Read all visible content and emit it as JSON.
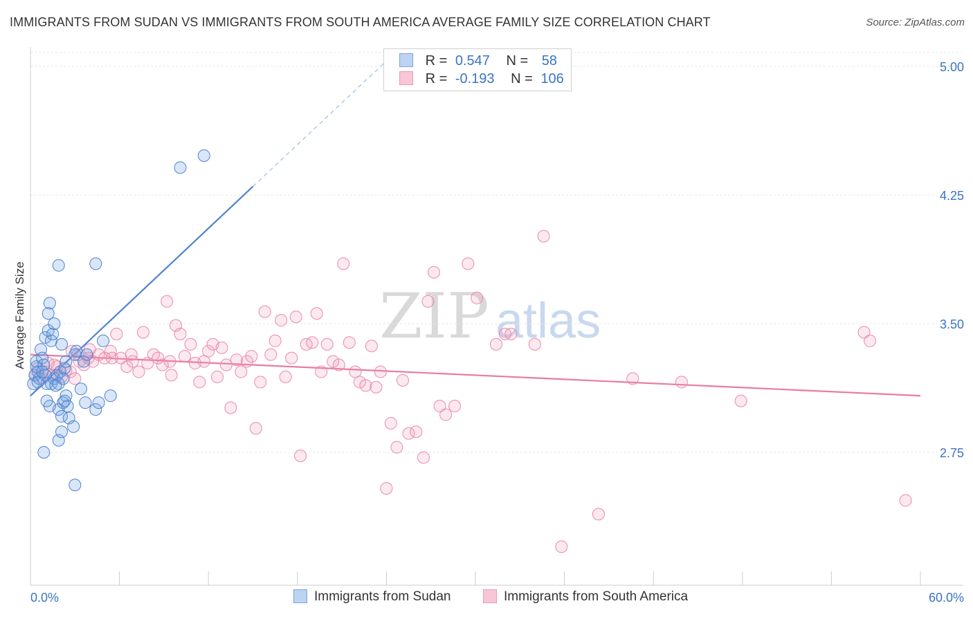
{
  "title": "IMMIGRANTS FROM SUDAN VS IMMIGRANTS FROM SOUTH AMERICA AVERAGE FAMILY SIZE CORRELATION CHART",
  "source": "Source: ZipAtlas.com",
  "watermark": {
    "part1": "ZIP",
    "part2": "atlas"
  },
  "colors": {
    "series_a": "#4e82cf",
    "series_b": "#e87ba0",
    "tick_text": "#3a74c4"
  },
  "legend": {
    "rows": [
      {
        "r_label": "R =",
        "r_value": "0.547",
        "n_label": "N =",
        "n_value": "58"
      },
      {
        "r_label": "R =",
        "r_value": "-0.193",
        "n_label": "N =",
        "n_value": "106"
      }
    ]
  },
  "chart_data": {
    "type": "scatter",
    "ylabel": "Average Family Size",
    "xlabel": "",
    "xlim": [
      0,
      60
    ],
    "ylim": [
      2.0,
      5.1
    ],
    "x_tick_labels": {
      "min": "0.0%",
      "max": "60.0%"
    },
    "y_ticks": [
      {
        "value": 2.75,
        "label": "2.75"
      },
      {
        "value": 3.5,
        "label": "3.50"
      },
      {
        "value": 4.25,
        "label": "4.25"
      },
      {
        "value": 5.0,
        "label": "5.00"
      }
    ],
    "series": [
      {
        "name": "Immigrants from Sudan",
        "r": 0.547,
        "n": 58,
        "trend": {
          "x0": 0.0,
          "y0": 3.08,
          "x1": 15.0,
          "y1": 4.3,
          "x_dash_end": 24.0
        },
        "points": [
          [
            0.2,
            3.15
          ],
          [
            0.3,
            3.2
          ],
          [
            0.4,
            3.25
          ],
          [
            0.5,
            3.22
          ],
          [
            0.6,
            3.18
          ],
          [
            0.4,
            3.28
          ],
          [
            0.7,
            3.35
          ],
          [
            0.8,
            3.3
          ],
          [
            0.9,
            3.26
          ],
          [
            1.0,
            3.2
          ],
          [
            1.1,
            3.15
          ],
          [
            1.0,
            3.42
          ],
          [
            1.2,
            3.46
          ],
          [
            1.3,
            3.62
          ],
          [
            1.2,
            3.56
          ],
          [
            1.4,
            3.4
          ],
          [
            1.5,
            3.44
          ],
          [
            1.6,
            3.5
          ],
          [
            1.4,
            3.15
          ],
          [
            1.6,
            3.18
          ],
          [
            1.8,
            3.2
          ],
          [
            1.9,
            3.15
          ],
          [
            2.1,
            3.38
          ],
          [
            2.0,
            3.22
          ],
          [
            2.3,
            3.24
          ],
          [
            2.4,
            3.28
          ],
          [
            1.9,
            2.82
          ],
          [
            2.1,
            2.87
          ],
          [
            1.9,
            3.0
          ],
          [
            2.2,
            3.04
          ],
          [
            2.4,
            3.08
          ],
          [
            2.1,
            2.96
          ],
          [
            2.5,
            3.02
          ],
          [
            2.3,
            3.05
          ],
          [
            1.3,
            3.02
          ],
          [
            1.1,
            3.05
          ],
          [
            0.9,
            2.75
          ],
          [
            2.6,
            2.95
          ],
          [
            2.9,
            2.9
          ],
          [
            3.0,
            3.32
          ],
          [
            3.1,
            3.34
          ],
          [
            3.4,
            3.12
          ],
          [
            3.6,
            3.28
          ],
          [
            3.8,
            3.32
          ],
          [
            3.7,
            3.04
          ],
          [
            4.4,
            3.0
          ],
          [
            4.6,
            3.04
          ],
          [
            4.9,
            3.4
          ],
          [
            5.4,
            3.08
          ],
          [
            4.4,
            3.85
          ],
          [
            1.9,
            3.84
          ],
          [
            3.0,
            2.56
          ],
          [
            10.1,
            4.41
          ],
          [
            11.7,
            4.48
          ],
          [
            0.5,
            3.16
          ],
          [
            0.8,
            3.22
          ],
          [
            1.7,
            3.14
          ],
          [
            2.2,
            3.18
          ]
        ]
      },
      {
        "name": "Immigrants from South America",
        "r": -0.193,
        "n": 106,
        "trend": {
          "x0": 0.0,
          "y0": 3.32,
          "x1": 60.0,
          "y1": 3.08
        },
        "points": [
          [
            0.3,
            3.2
          ],
          [
            0.5,
            3.24
          ],
          [
            0.8,
            3.18
          ],
          [
            1.0,
            3.22
          ],
          [
            1.2,
            3.27
          ],
          [
            1.5,
            3.2
          ],
          [
            1.8,
            3.25
          ],
          [
            2.1,
            3.19
          ],
          [
            2.4,
            3.23
          ],
          [
            2.7,
            3.22
          ],
          [
            3.0,
            3.18
          ],
          [
            3.3,
            3.28
          ],
          [
            3.6,
            3.26
          ],
          [
            3.9,
            3.3
          ],
          [
            4.2,
            3.28
          ],
          [
            4.6,
            3.32
          ],
          [
            5.0,
            3.3
          ],
          [
            5.4,
            3.34
          ],
          [
            5.8,
            3.44
          ],
          [
            6.1,
            3.3
          ],
          [
            6.5,
            3.25
          ],
          [
            6.9,
            3.28
          ],
          [
            7.3,
            3.22
          ],
          [
            7.6,
            3.45
          ],
          [
            7.9,
            3.27
          ],
          [
            8.3,
            3.32
          ],
          [
            8.6,
            3.3
          ],
          [
            8.9,
            3.26
          ],
          [
            9.2,
            3.63
          ],
          [
            9.5,
            3.2
          ],
          [
            9.8,
            3.49
          ],
          [
            10.1,
            3.44
          ],
          [
            10.4,
            3.31
          ],
          [
            10.8,
            3.38
          ],
          [
            11.1,
            3.27
          ],
          [
            11.4,
            3.16
          ],
          [
            11.7,
            3.28
          ],
          [
            12.0,
            3.34
          ],
          [
            12.3,
            3.38
          ],
          [
            12.6,
            3.19
          ],
          [
            12.9,
            3.36
          ],
          [
            13.2,
            3.26
          ],
          [
            13.5,
            3.01
          ],
          [
            13.9,
            3.29
          ],
          [
            14.2,
            3.22
          ],
          [
            14.6,
            3.28
          ],
          [
            14.9,
            3.31
          ],
          [
            15.2,
            2.89
          ],
          [
            15.5,
            3.16
          ],
          [
            15.8,
            3.57
          ],
          [
            16.2,
            3.32
          ],
          [
            16.5,
            3.4
          ],
          [
            16.9,
            3.52
          ],
          [
            17.2,
            3.19
          ],
          [
            17.6,
            3.3
          ],
          [
            17.9,
            3.54
          ],
          [
            18.2,
            2.73
          ],
          [
            18.6,
            3.38
          ],
          [
            19.0,
            3.39
          ],
          [
            19.3,
            3.56
          ],
          [
            19.6,
            3.22
          ],
          [
            20.0,
            3.38
          ],
          [
            20.4,
            3.28
          ],
          [
            20.8,
            3.26
          ],
          [
            21.1,
            3.85
          ],
          [
            21.5,
            3.39
          ],
          [
            21.9,
            3.22
          ],
          [
            22.2,
            3.16
          ],
          [
            22.6,
            3.14
          ],
          [
            23.0,
            3.37
          ],
          [
            23.3,
            3.13
          ],
          [
            23.6,
            3.22
          ],
          [
            24.0,
            2.54
          ],
          [
            24.3,
            2.92
          ],
          [
            24.7,
            2.78
          ],
          [
            25.1,
            3.17
          ],
          [
            25.5,
            2.86
          ],
          [
            26.0,
            2.87
          ],
          [
            26.5,
            2.72
          ],
          [
            26.8,
            3.63
          ],
          [
            27.2,
            3.8
          ],
          [
            27.6,
            3.02
          ],
          [
            28.0,
            2.97
          ],
          [
            28.6,
            3.02
          ],
          [
            29.5,
            3.85
          ],
          [
            30.1,
            3.65
          ],
          [
            31.4,
            3.38
          ],
          [
            32.0,
            3.44
          ],
          [
            32.4,
            3.44
          ],
          [
            34.0,
            3.38
          ],
          [
            34.6,
            4.01
          ],
          [
            35.8,
            2.2
          ],
          [
            38.3,
            2.39
          ],
          [
            40.6,
            3.18
          ],
          [
            43.9,
            3.16
          ],
          [
            47.9,
            3.05
          ],
          [
            56.2,
            3.45
          ],
          [
            56.6,
            3.4
          ],
          [
            59.0,
            2.47
          ],
          [
            5.5,
            3.3
          ],
          [
            6.8,
            3.32
          ],
          [
            9.4,
            3.28
          ],
          [
            3.2,
            3.32
          ],
          [
            4.0,
            3.35
          ],
          [
            2.8,
            3.34
          ],
          [
            1.6,
            3.26
          ]
        ]
      }
    ]
  }
}
